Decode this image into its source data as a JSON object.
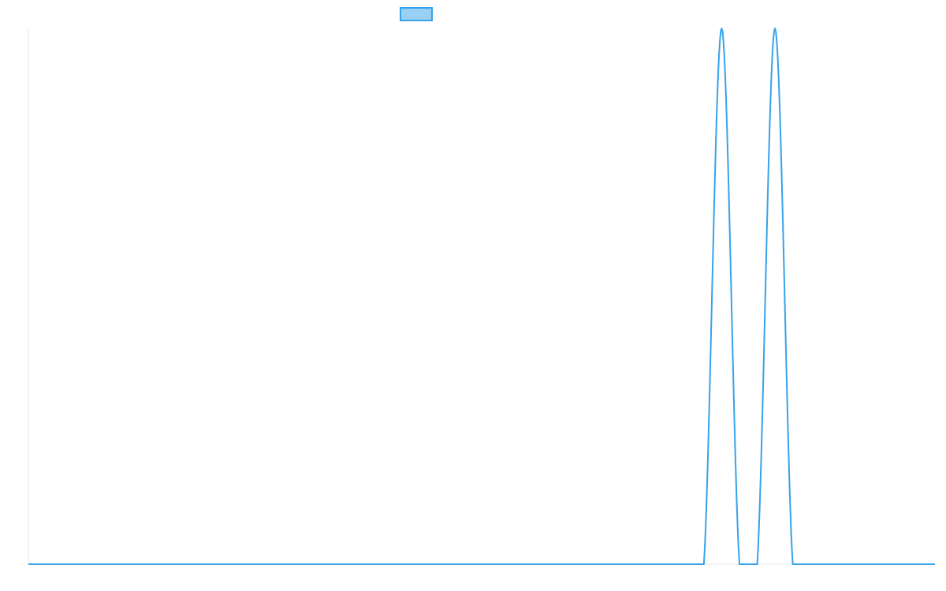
{
  "chart_data": {
    "type": "line",
    "title": "",
    "xlabel": "",
    "ylabel": "",
    "xlim": [
      0,
      51
    ],
    "ylim": [
      0,
      1
    ],
    "grid": false,
    "legend_position": "top-center",
    "series": [
      {
        "color": "#36a2eb",
        "fill": "#9ad0f5",
        "x": [
          0,
          1,
          2,
          3,
          4,
          5,
          6,
          7,
          8,
          9,
          10,
          11,
          12,
          13,
          14,
          15,
          16,
          17,
          18,
          19,
          20,
          21,
          22,
          23,
          24,
          25,
          26,
          27,
          28,
          29,
          30,
          31,
          32,
          33,
          34,
          35,
          36,
          37,
          38,
          39,
          40,
          41,
          42,
          43,
          44,
          45,
          46,
          47,
          48,
          49,
          50,
          51
        ],
        "values": [
          0,
          0,
          0,
          0,
          0,
          0,
          0,
          0,
          0,
          0,
          0,
          0,
          0,
          0,
          0,
          0,
          0,
          0,
          0,
          0,
          0,
          0,
          0,
          0,
          0,
          0,
          0,
          0,
          0,
          0,
          0,
          0,
          0,
          0,
          0,
          0,
          0,
          0,
          0,
          1,
          0,
          0,
          1,
          0,
          0,
          0,
          0,
          0,
          0,
          0,
          0,
          0
        ]
      }
    ]
  }
}
